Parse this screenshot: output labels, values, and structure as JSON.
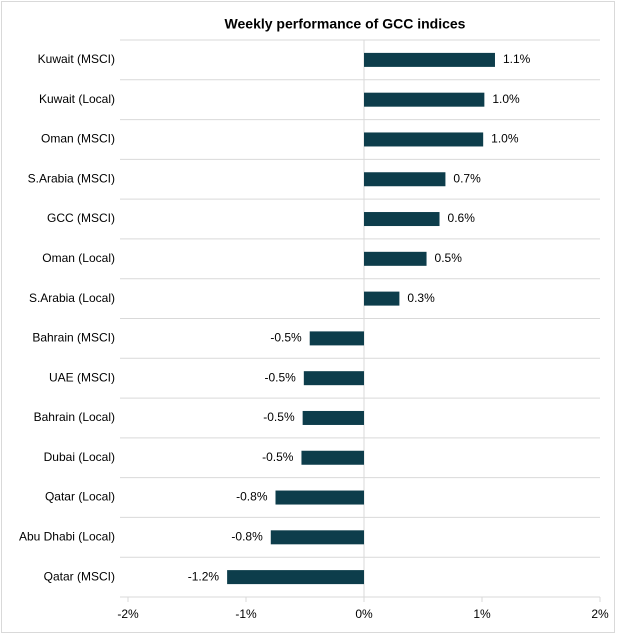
{
  "chart_data": {
    "type": "barh",
    "title": "Weekly performance of GCC indices",
    "categories": [
      "Kuwait (MSCI)",
      "Kuwait (Local)",
      "Oman (MSCI)",
      "S.Arabia (MSCI)",
      "GCC (MSCI)",
      "Oman (Local)",
      "S.Arabia (Local)",
      "Bahrain (MSCI)",
      "UAE (MSCI)",
      "Bahrain (Local)",
      "Dubai (Local)",
      "Qatar (Local)",
      "Abu Dhabi (Local)",
      "Qatar (MSCI)"
    ],
    "values": [
      1.11,
      1.02,
      1.01,
      0.69,
      0.64,
      0.53,
      0.3,
      -0.46,
      -0.51,
      -0.52,
      -0.53,
      -0.75,
      -0.79,
      -1.16
    ],
    "value_labels": [
      "1.1%",
      "1.0%",
      "1.0%",
      "0.7%",
      "0.6%",
      "0.5%",
      "0.3%",
      "-0.5%",
      "-0.5%",
      "-0.5%",
      "-0.5%",
      "-0.8%",
      "-0.8%",
      "-1.2%"
    ],
    "color": "#0d3d4b",
    "xlim": [
      -2,
      2
    ],
    "xticks": [
      {
        "value": -2,
        "label": "-2%"
      },
      {
        "value": -1,
        "label": "-1%"
      },
      {
        "value": 0,
        "label": "0%"
      },
      {
        "value": 1,
        "label": "1%"
      },
      {
        "value": 2,
        "label": "2%"
      }
    ]
  }
}
